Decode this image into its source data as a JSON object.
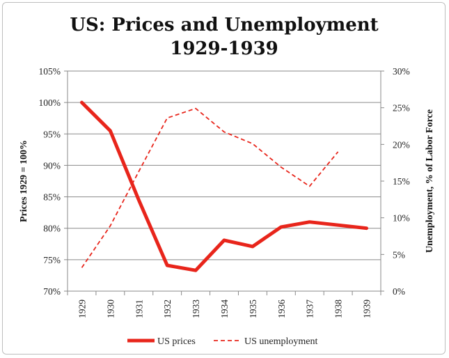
{
  "chart_data": {
    "type": "line",
    "title": "US: Prices and Unemployment",
    "subtitle": "1929-1939",
    "categories": [
      "1929",
      "1930",
      "1931",
      "1932",
      "1933",
      "1934",
      "1935",
      "1936",
      "1937",
      "1938",
      "1939"
    ],
    "ylabel_left": "Prices 1929 = 100%",
    "ylabel_right": "Unemployment, % of Labor Force",
    "ylim_left": [
      70,
      105
    ],
    "yticks_left": [
      "70%",
      "75%",
      "80%",
      "85%",
      "90%",
      "95%",
      "100%",
      "105%"
    ],
    "ylim_right": [
      0,
      30
    ],
    "yticks_right": [
      "0%",
      "5%",
      "10%",
      "15%",
      "20%",
      "25%",
      "30%"
    ],
    "grid": true,
    "legend_position": "bottom",
    "series": [
      {
        "name": "US prices",
        "axis": "left",
        "style": "solid",
        "color": "#e8251b",
        "values": [
          100,
          95.5,
          84.5,
          74.1,
          73.3,
          78.1,
          77.1,
          80.2,
          81.0,
          80.5,
          80.0
        ]
      },
      {
        "name": "US unemployment",
        "axis": "right",
        "style": "dashed",
        "color": "#e8251b",
        "values": [
          3.2,
          8.9,
          16.3,
          23.6,
          24.9,
          21.7,
          20.1,
          16.9,
          14.3,
          19.0,
          null
        ]
      }
    ]
  }
}
